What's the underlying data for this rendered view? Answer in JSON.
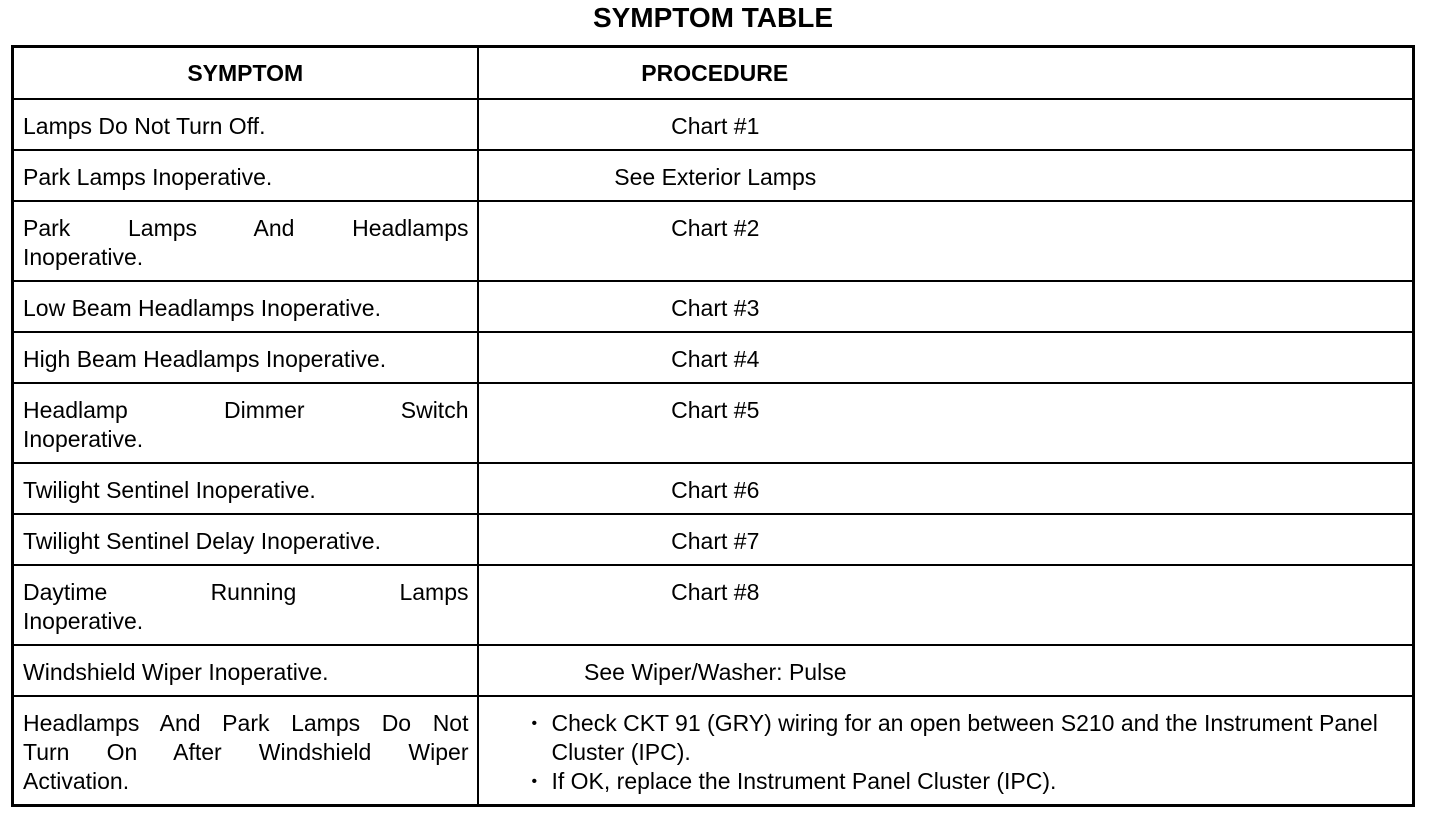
{
  "title": "SYMPTOM TABLE",
  "table": {
    "header": [
      "SYMPTOM",
      "PROCEDURE"
    ],
    "rows": [
      {
        "symptom": [
          "Lamps Do Not Turn Off."
        ],
        "procedure": "Chart #1"
      },
      {
        "symptom": [
          "Park Lamps Inoperative."
        ],
        "procedure": "See Exterior Lamps"
      },
      {
        "symptom": [
          "Park Lamps And Headlamps",
          "Inoperative."
        ],
        "procedure": "Chart #2"
      },
      {
        "symptom": [
          "Low Beam Headlamps Inoperative."
        ],
        "procedure": "Chart #3"
      },
      {
        "symptom": [
          "High Beam Headlamps Inoperative."
        ],
        "procedure": "Chart #4"
      },
      {
        "symptom": [
          "Headlamp Dimmer Switch",
          "Inoperative."
        ],
        "procedure": "Chart #5"
      },
      {
        "symptom": [
          "Twilight Sentinel Inoperative."
        ],
        "procedure": "Chart #6"
      },
      {
        "symptom": [
          "Twilight Sentinel Delay Inoperative."
        ],
        "procedure": "Chart #7"
      },
      {
        "symptom": [
          "Daytime Running Lamps",
          "Inoperative."
        ],
        "procedure": "Chart #8"
      },
      {
        "symptom": [
          "Windshield Wiper Inoperative."
        ],
        "procedure": "See Wiper/Washer: Pulse"
      },
      {
        "symptom": [
          "Headlamps And Park Lamps Do Not",
          "Turn On After Windshield Wiper",
          "Activation."
        ],
        "procedure": [
          "Check CKT 91 (GRY) wiring for an open between S210 and the Instrument Panel Cluster (IPC).",
          "If OK, replace the Instrument Panel Cluster (IPC)."
        ]
      }
    ]
  }
}
